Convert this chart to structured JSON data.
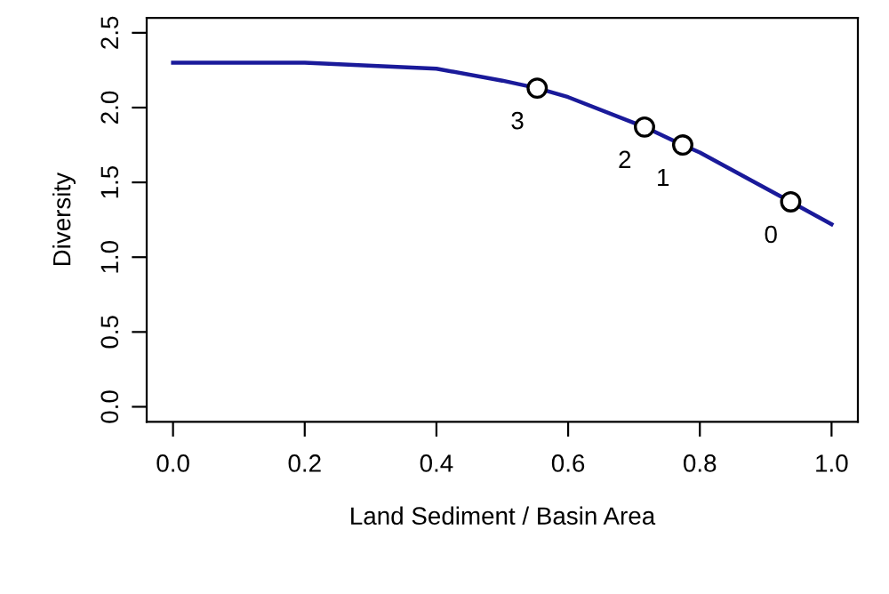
{
  "chart_data": {
    "type": "line",
    "xlabel": "Land Sediment / Basin Area",
    "ylabel": "Diversity",
    "xlim": [
      -0.04,
      1.04
    ],
    "ylim": [
      -0.1,
      2.6
    ],
    "xticks": [
      {
        "value": 0,
        "label": "0.0"
      },
      0.2,
      0.4,
      0.6,
      0.8,
      {
        "value": 1,
        "label": "1.0"
      }
    ],
    "yticks": [
      {
        "value": 0,
        "label": "0.0"
      },
      0.5,
      {
        "value": 1,
        "label": "1.0"
      },
      1.5,
      {
        "value": 2,
        "label": "2.0"
      },
      2.5
    ],
    "grid": false,
    "series": [
      {
        "color": "#1a1a9a",
        "x": [
          0,
          0.2,
          0.4,
          0.5,
          0.553,
          0.6,
          0.716,
          0.774,
          0.8,
          0.938,
          1.0
        ],
        "values": [
          2.3,
          2.3,
          2.26,
          2.18,
          2.13,
          2.07,
          1.87,
          1.75,
          1.7,
          1.37,
          1.22
        ]
      },
      {
        "type": "scatter",
        "color": "#000000",
        "marker": "circle",
        "x": [
          0.938,
          0.774,
          0.716,
          0.553
        ],
        "values": [
          1.37,
          1.75,
          1.87,
          2.13
        ]
      }
    ],
    "annotations": [
      {
        "text": "0",
        "x": 0.938,
        "y": 1.37
      },
      {
        "text": "1",
        "x": 0.774,
        "y": 1.75
      },
      {
        "text": "2",
        "x": 0.716,
        "y": 1.87
      },
      {
        "text": "3",
        "x": 0.553,
        "y": 2.13
      }
    ]
  }
}
